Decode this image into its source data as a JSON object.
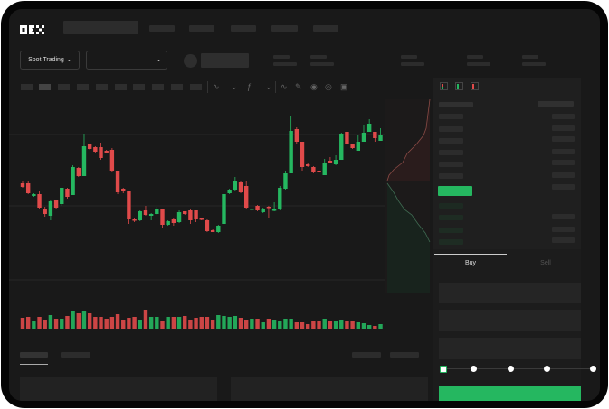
{
  "header": {
    "logo": "OKX"
  },
  "market_bar": {
    "mode_button": "Spot Trading",
    "chevron": "chevron-down-icon"
  },
  "trade_panel": {
    "tabs": [
      "Buy",
      "Sell"
    ],
    "active_tab": "Buy",
    "leverage_slider_value": 0
  },
  "colors": {
    "up": "#25b760",
    "down": "#e04a4a",
    "background": "#191919",
    "panel": "#1f1f1f"
  },
  "chart": {
    "type": "candlestick",
    "candles": [
      [
        97,
        99,
        92,
        93
      ],
      [
        97,
        99,
        85,
        86
      ],
      [
        83,
        86,
        82,
        85
      ],
      [
        85,
        89,
        69,
        70
      ],
      [
        68,
        71,
        60,
        63
      ],
      [
        61,
        78,
        56,
        77
      ],
      [
        78,
        79,
        68,
        70
      ],
      [
        74,
        92,
        72,
        92
      ],
      [
        91,
        92,
        80,
        82
      ],
      [
        84,
        117,
        84,
        115
      ],
      [
        114,
        115,
        104,
        105
      ],
      [
        105,
        152,
        105,
        138
      ],
      [
        140,
        141,
        134,
        135
      ],
      [
        137,
        138,
        131,
        132
      ],
      [
        137,
        142,
        123,
        125
      ],
      [
        133,
        134,
        130,
        131
      ],
      [
        134,
        136,
        110,
        111
      ],
      [
        111,
        111,
        85,
        87
      ],
      [
        91,
        92,
        86,
        89
      ],
      [
        88,
        88,
        52,
        57
      ],
      [
        57,
        59,
        54,
        56
      ],
      [
        56,
        67,
        55,
        66
      ],
      [
        67,
        72,
        61,
        62
      ],
      [
        61,
        64,
        56,
        63
      ],
      [
        63,
        71,
        62,
        69
      ],
      [
        68,
        69,
        48,
        51
      ],
      [
        51,
        56,
        50,
        55
      ],
      [
        57,
        58,
        50,
        53
      ],
      [
        54,
        67,
        53,
        65
      ],
      [
        66,
        66,
        62,
        63
      ],
      [
        67,
        68,
        52,
        56
      ],
      [
        67,
        67,
        54,
        57
      ],
      [
        58,
        59,
        56,
        57
      ],
      [
        56,
        57,
        43,
        44
      ],
      [
        45,
        46,
        43,
        43
      ],
      [
        43,
        51,
        42,
        50
      ],
      [
        52,
        89,
        51,
        85
      ],
      [
        86,
        91,
        85,
        90
      ],
      [
        90,
        104,
        89,
        100
      ],
      [
        98,
        99,
        86,
        87
      ],
      [
        94,
        99,
        69,
        70
      ],
      [
        68,
        70,
        66,
        69
      ],
      [
        72,
        73,
        66,
        67
      ],
      [
        65,
        70,
        64,
        69
      ],
      [
        71,
        72,
        59,
        70
      ],
      [
        67,
        76,
        66,
        68
      ],
      [
        68,
        94,
        67,
        92
      ],
      [
        91,
        111,
        90,
        108
      ],
      [
        108,
        171,
        108,
        155
      ],
      [
        157,
        159,
        140,
        143
      ],
      [
        143,
        143,
        111,
        115
      ],
      [
        118,
        119,
        115,
        116
      ],
      [
        115,
        116,
        108,
        109
      ],
      [
        111,
        113,
        108,
        109
      ],
      [
        106,
        124,
        106,
        120
      ],
      [
        122,
        126,
        119,
        120
      ],
      [
        118,
        128,
        117,
        123
      ],
      [
        123,
        153,
        123,
        152
      ],
      [
        154,
        155,
        139,
        140
      ],
      [
        141,
        141,
        135,
        136
      ],
      [
        133,
        150,
        133,
        143
      ],
      [
        143,
        161,
        143,
        153
      ],
      [
        154,
        168,
        154,
        163
      ],
      [
        154,
        154,
        143,
        147
      ],
      [
        144,
        158,
        144,
        151
      ]
    ],
    "volume": [
      12,
      13,
      8,
      13,
      10,
      15,
      11,
      11,
      14,
      20,
      17,
      20,
      17,
      13,
      13,
      11,
      13,
      16,
      10,
      12,
      13,
      10,
      21,
      13,
      13,
      8,
      13,
      13,
      13,
      14,
      10,
      12,
      13,
      13,
      10,
      15,
      14,
      13,
      14,
      12,
      10,
      11,
      11,
      7,
      11,
      10,
      9,
      11,
      11,
      7,
      7,
      5,
      8,
      8,
      11,
      9,
      9,
      10,
      9,
      8,
      7,
      6,
      4,
      3,
      5
    ],
    "depth": {
      "asks_side": "red",
      "bids_side": "green"
    }
  }
}
